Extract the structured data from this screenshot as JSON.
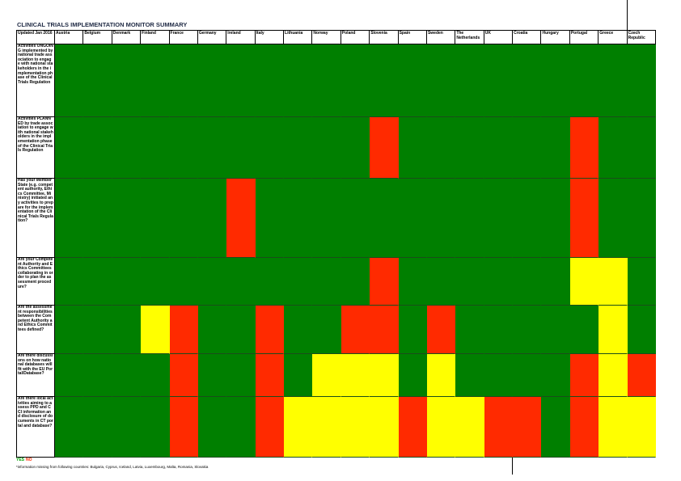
{
  "header": {
    "title": "CLINICAL TRIALS IMPLEMENTATION MONITOR SUMMARY"
  },
  "table": {
    "corner": "Updated Jan 2016",
    "columns": [
      "Austria",
      "Belgium",
      "Denmark",
      "Finland",
      "France",
      "Germany",
      "Ireland",
      "Italy",
      "Lithuania",
      "Norway",
      "Poland",
      "Slovenia",
      "Spain",
      "Sweden",
      "The Netherlands",
      "UK",
      "Croatia",
      "Hungary",
      "Portugal",
      "Greece",
      "Czech Republic"
    ],
    "rows": [
      {
        "question": "Activities ONGOING implemented by national trade association to engage with national stakeholders in the implementation phase of the Clinical Trials Regulation",
        "cells": [
          "#007f00",
          "#007f00",
          "#007f00",
          "#007f00",
          "#007f00",
          "#007f00",
          "#007f00",
          "#007f00",
          "#007f00",
          "#007f00",
          "#007f00",
          "#007f00",
          "#007f00",
          "#007f00",
          "#007f00",
          "#007f00",
          "#007f00",
          "#007f00",
          "#007f00",
          "#007f00",
          "#007f00"
        ]
      },
      {
        "question": "Activities PLANNED by trade association to engage with national stakeholders in the implementation phase of the Clinical Trials Regulation",
        "cells": [
          "#007f00",
          "#007f00",
          "#007f00",
          "#007f00",
          "#007f00",
          "#007f00",
          "#007f00",
          "#007f00",
          "#007f00",
          "#007f00",
          "#007f00",
          "#ff2a00",
          "#007f00",
          "#007f00",
          "#007f00",
          "#007f00",
          "#007f00",
          "#007f00",
          "#ff2a00",
          "#007f00",
          "#007f00"
        ]
      },
      {
        "question": "Has your Member State (e.g. competent authority, Ethics Committee, Ministry) initiated any activities to prepare for the implementation of the Clinical Trials Regulation?",
        "cells": [
          "#007f00",
          "#007f00",
          "#007f00",
          "#007f00",
          "#007f00",
          "#007f00",
          "#ff2a00",
          "#007f00",
          "#007f00",
          "#007f00",
          "#007f00",
          "#007f00",
          "#007f00",
          "#007f00",
          "#007f00",
          "#007f00",
          "#007f00",
          "#007f00",
          "#ff2a00",
          "#007f00",
          "#007f00"
        ]
      },
      {
        "question": "Are your Competent Authority and Ethics Committees collaborating in order to plan the assessment procedure?",
        "cells": [
          "#007f00",
          "#007f00",
          "#007f00",
          "#007f00",
          "#007f00",
          "#007f00",
          "#007f00",
          "#007f00",
          "#007f00",
          "#007f00",
          "#007f00",
          "#ff2a00",
          "#007f00",
          "#007f00",
          "#007f00",
          "#007f00",
          "#007f00",
          "#007f00",
          "#ffff00",
          "#ffff00",
          "#007f00"
        ]
      },
      {
        "question": "Are the assessment responsibilities between the Competent Authority and Ethics Committees defined?",
        "cells": [
          "#007f00",
          "#007f00",
          "#007f00",
          "#ffff00",
          "#ff2a00",
          "#007f00",
          "#007f00",
          "#ff2a00",
          "#007f00",
          "#007f00",
          "#ff2a00",
          "#ff2a00",
          "#007f00",
          "#ff2a00",
          "#007f00",
          "#007f00",
          "#007f00",
          "#007f00",
          "#007f00",
          "#ffff00",
          "#007f00"
        ]
      },
      {
        "question": "Are there discussions on how national databases will fit with the EU Portal/Database?",
        "cells": [
          "#007f00",
          "#007f00",
          "#007f00",
          "#007f00",
          "#ff2a00",
          "#007f00",
          "#007f00",
          "#ff2a00",
          "#007f00",
          "#ffff00",
          "#ffff00",
          "#ffff00",
          "#007f00",
          "#ffff00",
          "#007f00",
          "#007f00",
          "#007f00",
          "#007f00",
          "#ff2a00",
          "#ffff00",
          "#ff2a00"
        ]
      },
      {
        "question": "Are there local activities aiming to assess PPD and CCI information and disclosure of documents in CT portal and database?",
        "cells": [
          "#007f00",
          "#007f00",
          "#007f00",
          "#007f00",
          "#ff2a00",
          "#007f00",
          "#007f00",
          "#ff2a00",
          "#ffff00",
          "#ffff00",
          "#ffff00",
          "#ffff00",
          "#ff2a00",
          "#ffff00",
          "#ffff00",
          "#ff2a00",
          "#ff2a00",
          "#007f00",
          "#ff2a00",
          "#ffff00",
          "#ffff00"
        ]
      }
    ]
  },
  "legend": [
    {
      "label": "YES",
      "color": "#00a000"
    },
    {
      "label": "NO",
      "color": "#ff2a00"
    }
  ],
  "footnote": "*information missing from following countries: Bulgaria, Cyprus, Iceland, Latvia, Luxembourg, Malta, Romania, Slovakia"
}
